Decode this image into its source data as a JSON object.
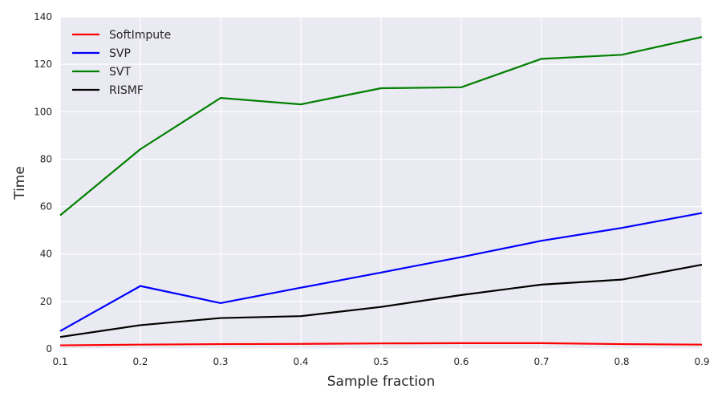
{
  "chart_data": {
    "type": "line",
    "title": "",
    "xlabel": "Sample fraction",
    "ylabel": "Time",
    "x": [
      0.1,
      0.2,
      0.3,
      0.4,
      0.5,
      0.6,
      0.7,
      0.8,
      0.9
    ],
    "xlim": [
      0.1,
      0.9
    ],
    "ylim": [
      0,
      140
    ],
    "x_ticks": [
      "0.1",
      "0.2",
      "0.3",
      "0.4",
      "0.5",
      "0.6",
      "0.7",
      "0.8",
      "0.9"
    ],
    "y_ticks": [
      "0",
      "20",
      "40",
      "60",
      "80",
      "100",
      "120",
      "140"
    ],
    "grid": true,
    "legend_position": "top-left",
    "series": [
      {
        "name": "SoftImpute",
        "color": "#ff0000",
        "values": [
          1.5,
          1.8,
          2.0,
          2.1,
          2.3,
          2.4,
          2.4,
          2.0,
          1.8
        ]
      },
      {
        "name": "SVP",
        "color": "#0000ff",
        "values": [
          7.5,
          26.5,
          19.3,
          25.8,
          32.2,
          38.7,
          45.6,
          51.0,
          57.3
        ]
      },
      {
        "name": "SVT",
        "color": "#008000",
        "values": [
          56.3,
          84.2,
          105.8,
          103.1,
          109.9,
          110.3,
          122.3,
          124.0,
          131.5
        ]
      },
      {
        "name": "RISMF",
        "color": "#000000",
        "values": [
          5.0,
          10.0,
          13.0,
          13.8,
          17.7,
          22.7,
          27.1,
          29.2,
          35.5
        ]
      }
    ]
  }
}
